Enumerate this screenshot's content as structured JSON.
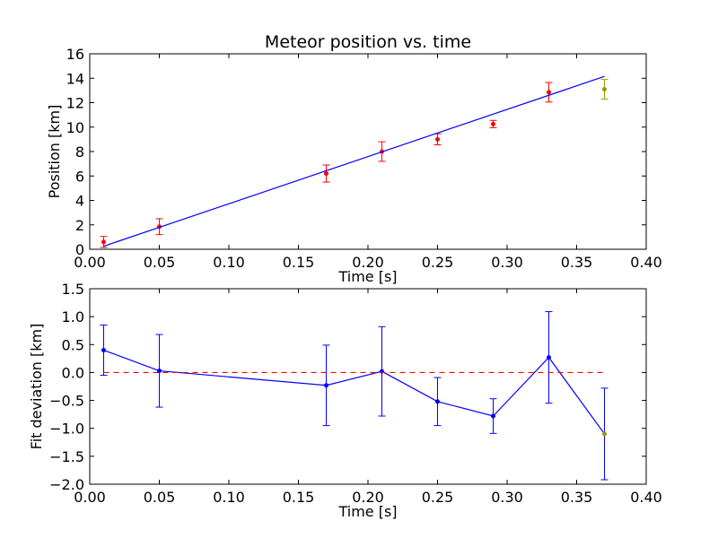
{
  "chart_data": [
    {
      "type": "scatter",
      "title": "Meteor position vs. time",
      "xlabel": "Time [s]",
      "ylabel": "Position [km]",
      "xlim": [
        0.0,
        0.4
      ],
      "ylim": [
        0,
        16
      ],
      "x_ticks": [
        "0.00",
        "0.05",
        "0.10",
        "0.15",
        "0.20",
        "0.25",
        "0.30",
        "0.35",
        "0.40"
      ],
      "y_ticks": [
        "0",
        "2",
        "4",
        "6",
        "8",
        "10",
        "12",
        "14",
        "16"
      ],
      "grid": false,
      "series": [
        {
          "style": "errorbar",
          "color": "#ff0000",
          "x": [
            0.01,
            0.05,
            0.17,
            0.21,
            0.25,
            0.29,
            0.33
          ],
          "y": [
            0.6,
            1.85,
            6.2,
            8.0,
            9.0,
            10.25,
            12.85
          ],
          "err": [
            0.45,
            0.65,
            0.7,
            0.8,
            0.45,
            0.3,
            0.8
          ]
        },
        {
          "style": "errorbar",
          "color": "#999900",
          "x": [
            0.37
          ],
          "y": [
            13.1
          ],
          "err": [
            0.8
          ]
        },
        {
          "style": "fit-line",
          "color": "#0000ff",
          "x": [
            0.01,
            0.37
          ],
          "y": [
            0.25,
            14.15
          ]
        }
      ]
    },
    {
      "type": "line",
      "title": "",
      "xlabel": "Time [s]",
      "ylabel": "Fit deviation [km]",
      "xlim": [
        0.0,
        0.4
      ],
      "ylim": [
        -2.0,
        1.5
      ],
      "x_ticks": [
        "0.00",
        "0.05",
        "0.10",
        "0.15",
        "0.20",
        "0.25",
        "0.30",
        "0.35",
        "0.40"
      ],
      "y_ticks": [
        "−2.0",
        "−1.5",
        "−1.0",
        "−0.5",
        "0.0",
        "0.5",
        "1.0",
        "1.5"
      ],
      "grid": false,
      "series": [
        {
          "style": "line-errorbar",
          "color": "#0000ff",
          "x": [
            0.01,
            0.05,
            0.17,
            0.21,
            0.25,
            0.29,
            0.33,
            0.37
          ],
          "y": [
            0.4,
            0.03,
            -0.23,
            0.02,
            -0.52,
            -0.78,
            0.27,
            -1.1
          ],
          "err": [
            0.45,
            0.65,
            0.72,
            0.8,
            0.43,
            0.31,
            0.82,
            0.82
          ]
        },
        {
          "style": "dashed",
          "color": "#ff0000",
          "x": [
            0.01,
            0.37
          ],
          "y": [
            0.0,
            0.0
          ]
        }
      ]
    }
  ]
}
